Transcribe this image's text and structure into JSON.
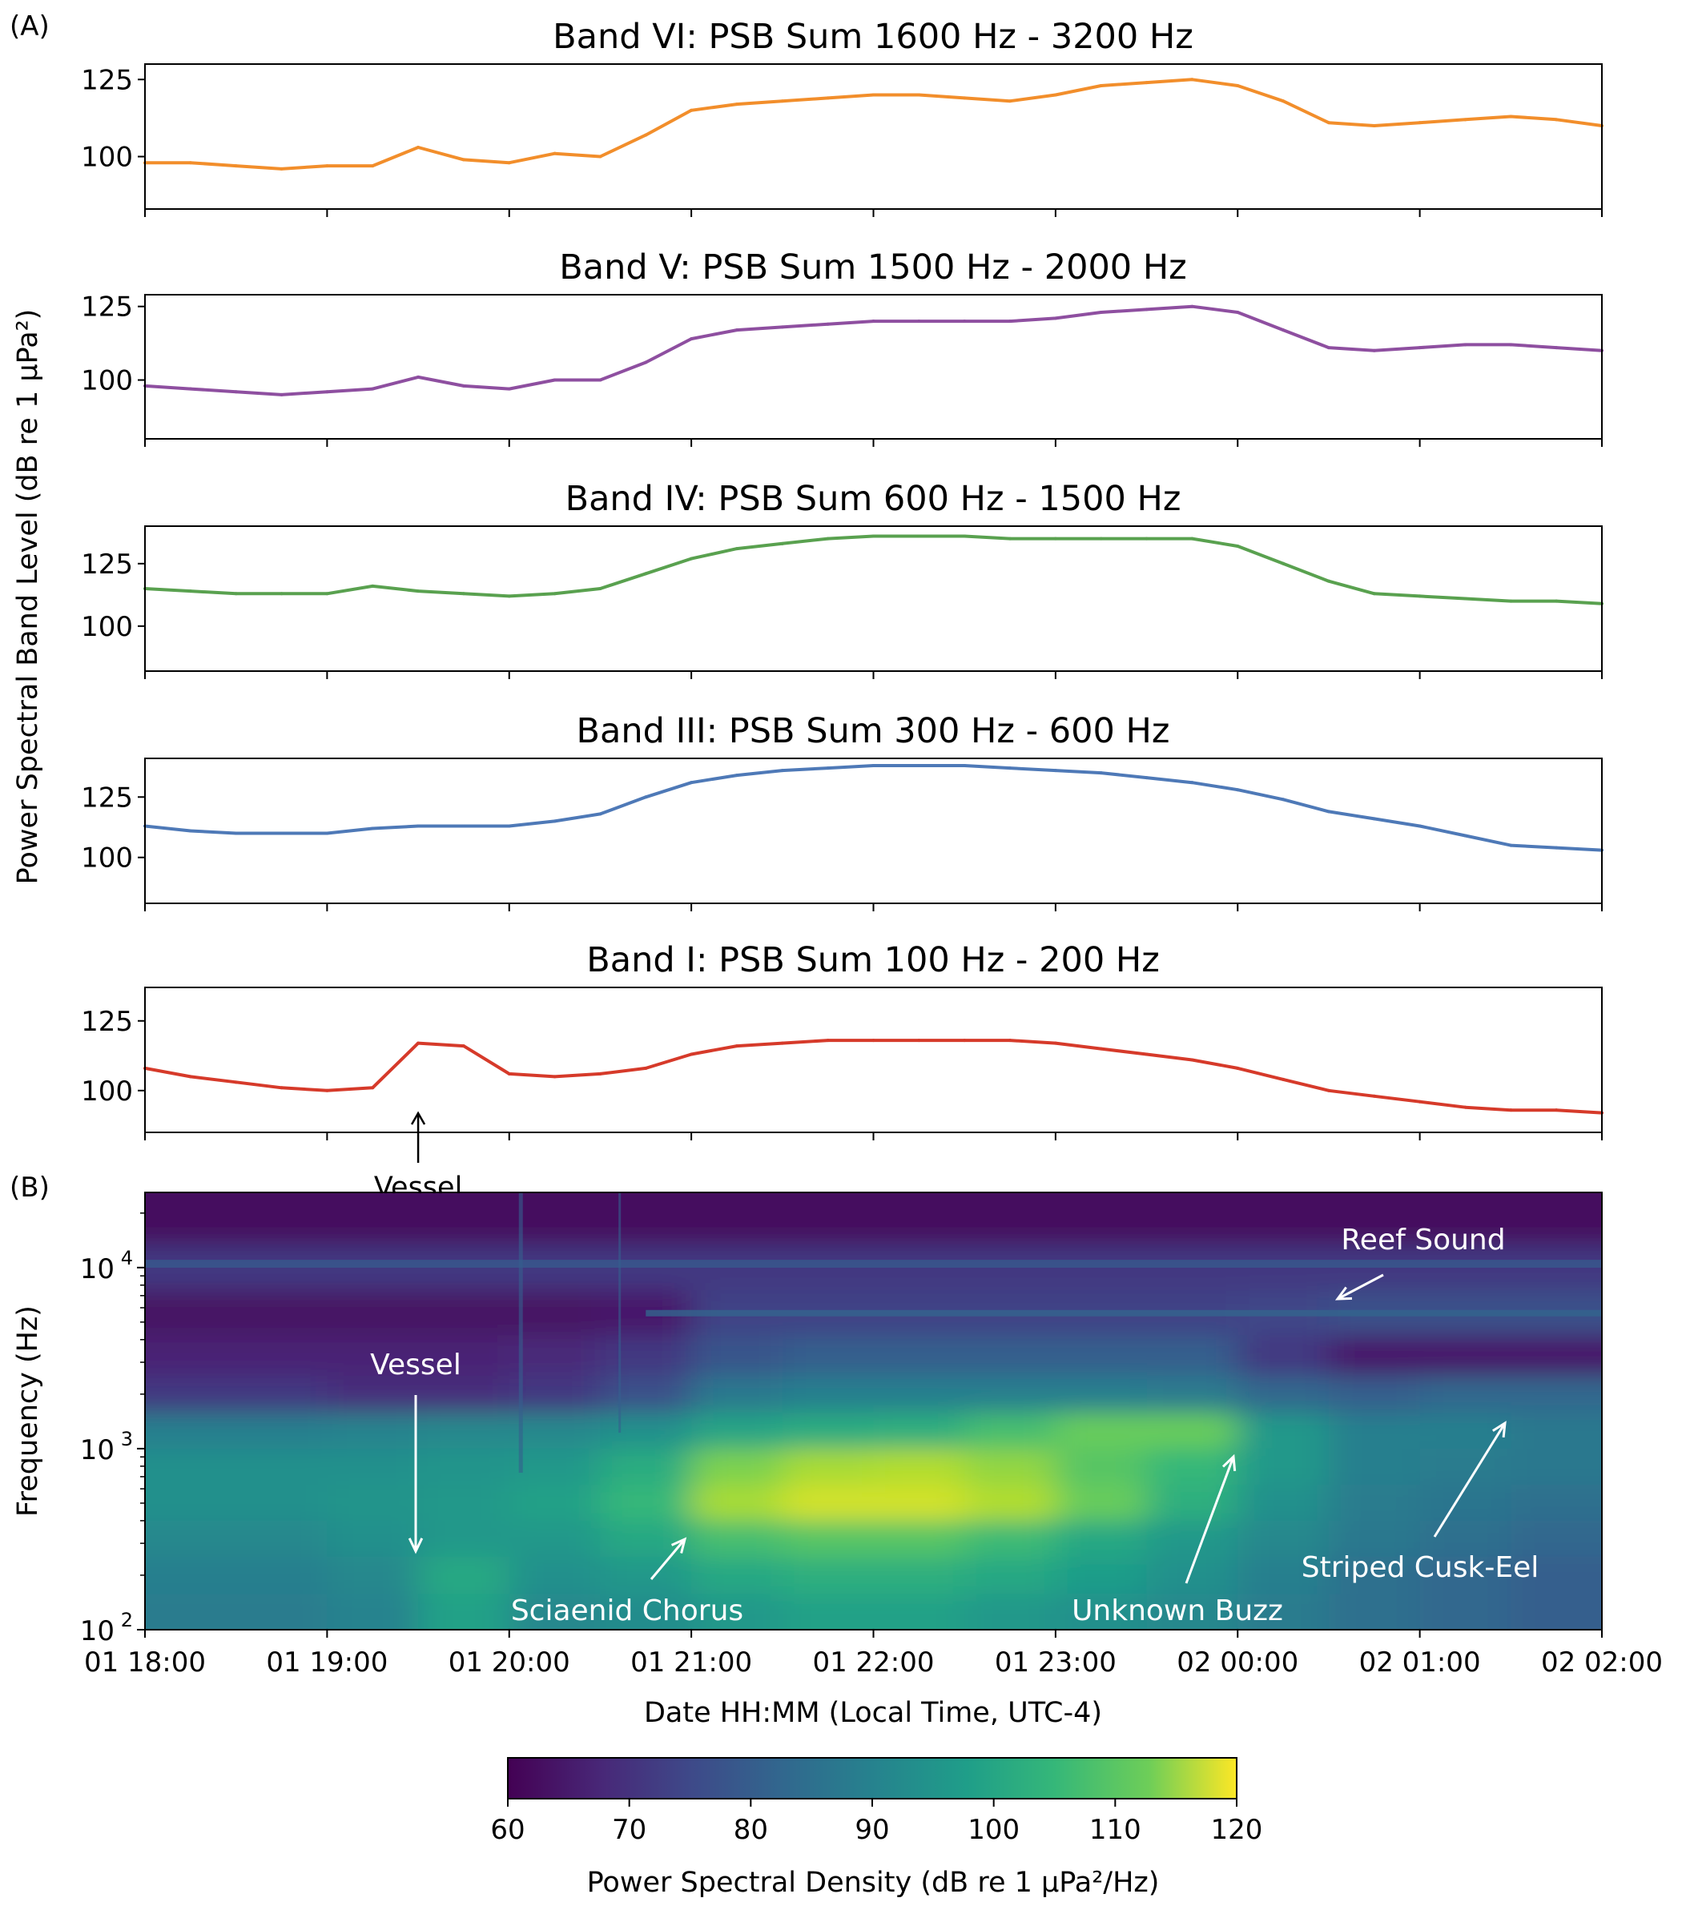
{
  "panel_labels": {
    "a": "(A)",
    "b": "(B)"
  },
  "shared_ylabel": "Power Spectral Band Level (dB re 1 μPa²)",
  "xlabel": "Date HH:MM (Local Time, UTC-4)",
  "chart_data": [
    {
      "type": "line",
      "title": "Band VI: PSB Sum 1600 Hz - 3200 Hz",
      "color": "#f28e2b",
      "ylim": [
        83,
        130
      ],
      "yticks": [
        100,
        125
      ],
      "x": [
        "18:00",
        "18:15",
        "18:30",
        "18:45",
        "19:00",
        "19:15",
        "19:30",
        "19:45",
        "20:00",
        "20:15",
        "20:30",
        "20:45",
        "21:00",
        "21:15",
        "21:30",
        "21:45",
        "22:00",
        "22:15",
        "22:30",
        "22:45",
        "23:00",
        "23:15",
        "23:30",
        "23:45",
        "00:00",
        "00:15",
        "00:30",
        "00:45",
        "01:00",
        "01:15",
        "01:30",
        "01:45",
        "02:00"
      ],
      "values": [
        98,
        98,
        97,
        96,
        97,
        97,
        103,
        99,
        98,
        101,
        100,
        107,
        115,
        117,
        118,
        119,
        120,
        120,
        119,
        118,
        120,
        123,
        124,
        125,
        123,
        118,
        111,
        110,
        111,
        112,
        113,
        112,
        110
      ]
    },
    {
      "type": "line",
      "title": "Band V: PSB Sum 1500 Hz - 2000 Hz",
      "color": "#8e4fa0",
      "ylim": [
        80,
        129
      ],
      "yticks": [
        100,
        125
      ],
      "x": [
        "18:00",
        "18:15",
        "18:30",
        "18:45",
        "19:00",
        "19:15",
        "19:30",
        "19:45",
        "20:00",
        "20:15",
        "20:30",
        "20:45",
        "21:00",
        "21:15",
        "21:30",
        "21:45",
        "22:00",
        "22:15",
        "22:30",
        "22:45",
        "23:00",
        "23:15",
        "23:30",
        "23:45",
        "00:00",
        "00:15",
        "00:30",
        "00:45",
        "01:00",
        "01:15",
        "01:30",
        "01:45",
        "02:00"
      ],
      "values": [
        98,
        97,
        96,
        95,
        96,
        97,
        101,
        98,
        97,
        100,
        100,
        106,
        114,
        117,
        118,
        119,
        120,
        120,
        120,
        120,
        121,
        123,
        124,
        125,
        123,
        117,
        111,
        110,
        111,
        112,
        112,
        111,
        110
      ]
    },
    {
      "type": "line",
      "title": "Band IV: PSB Sum 600 Hz - 1500 Hz",
      "color": "#59a14f",
      "ylim": [
        82,
        140
      ],
      "yticks": [
        100,
        125
      ],
      "x": [
        "18:00",
        "18:15",
        "18:30",
        "18:45",
        "19:00",
        "19:15",
        "19:30",
        "19:45",
        "20:00",
        "20:15",
        "20:30",
        "20:45",
        "21:00",
        "21:15",
        "21:30",
        "21:45",
        "22:00",
        "22:15",
        "22:30",
        "22:45",
        "23:00",
        "23:15",
        "23:30",
        "23:45",
        "00:00",
        "00:15",
        "00:30",
        "00:45",
        "01:00",
        "01:15",
        "01:30",
        "01:45",
        "02:00"
      ],
      "values": [
        115,
        114,
        113,
        113,
        113,
        116,
        114,
        113,
        112,
        113,
        115,
        121,
        127,
        131,
        133,
        135,
        136,
        136,
        136,
        135,
        135,
        135,
        135,
        135,
        132,
        125,
        118,
        113,
        112,
        111,
        110,
        110,
        109
      ]
    },
    {
      "type": "line",
      "title": "Band III: PSB Sum 300 Hz - 600 Hz",
      "color": "#4e79b7",
      "ylim": [
        81,
        141
      ],
      "yticks": [
        100,
        125
      ],
      "x": [
        "18:00",
        "18:15",
        "18:30",
        "18:45",
        "19:00",
        "19:15",
        "19:30",
        "19:45",
        "20:00",
        "20:15",
        "20:30",
        "20:45",
        "21:00",
        "21:15",
        "21:30",
        "21:45",
        "22:00",
        "22:15",
        "22:30",
        "22:45",
        "23:00",
        "23:15",
        "23:30",
        "23:45",
        "00:00",
        "00:15",
        "00:30",
        "00:45",
        "01:00",
        "01:15",
        "01:30",
        "01:45",
        "02:00"
      ],
      "values": [
        113,
        111,
        110,
        110,
        110,
        112,
        113,
        113,
        113,
        115,
        118,
        125,
        131,
        134,
        136,
        137,
        138,
        138,
        138,
        137,
        136,
        135,
        133,
        131,
        128,
        124,
        119,
        116,
        113,
        109,
        105,
        104,
        103
      ]
    },
    {
      "type": "line",
      "title": "Band I: PSB Sum 100 Hz - 200 Hz",
      "color": "#d63a2a",
      "ylim": [
        85,
        137
      ],
      "yticks": [
        100,
        125
      ],
      "x": [
        "18:00",
        "18:15",
        "18:30",
        "18:45",
        "19:00",
        "19:15",
        "19:30",
        "19:45",
        "20:00",
        "20:15",
        "20:30",
        "20:45",
        "21:00",
        "21:15",
        "21:30",
        "21:45",
        "22:00",
        "22:15",
        "22:30",
        "22:45",
        "23:00",
        "23:15",
        "23:30",
        "23:45",
        "00:00",
        "00:15",
        "00:30",
        "00:45",
        "01:00",
        "01:15",
        "01:30",
        "01:45",
        "02:00"
      ],
      "values": [
        108,
        105,
        103,
        101,
        100,
        101,
        117,
        116,
        106,
        105,
        106,
        108,
        113,
        116,
        117,
        118,
        118,
        118,
        118,
        118,
        117,
        115,
        113,
        111,
        108,
        104,
        100,
        98,
        96,
        94,
        93,
        93,
        92
      ],
      "annotations": [
        {
          "text": "Vessel",
          "x": "19:30"
        }
      ]
    },
    {
      "type": "heatmap",
      "ylabel": "Frequency (Hz)",
      "yscale": "log",
      "ylim": [
        100,
        26000
      ],
      "yticks": [
        {
          "value": 100,
          "base": "10",
          "exp": "2"
        },
        {
          "value": 1000,
          "base": "10",
          "exp": "3"
        },
        {
          "value": 10000,
          "base": "10",
          "exp": "4"
        }
      ],
      "xtick_labels": [
        "01 18:00",
        "01 19:00",
        "01 20:00",
        "01 21:00",
        "01 22:00",
        "01 23:00",
        "02 00:00",
        "02 01:00",
        "02 02:00"
      ],
      "colormap": "viridis",
      "time_bins": [
        "18:15",
        "18:45",
        "19:15",
        "19:45",
        "20:15",
        "20:45",
        "21:15",
        "21:45",
        "22:15",
        "22:45",
        "23:15",
        "23:45",
        "00:15",
        "00:45",
        "01:15",
        "01:45"
      ],
      "freq_bins": [
        18000,
        10000,
        5600,
        3200,
        2000,
        1250,
        800,
        500,
        320,
        200,
        125
      ],
      "values": [
        [
          62,
          62,
          62,
          62,
          62,
          62,
          62,
          62,
          62,
          62,
          62,
          62,
          62,
          62,
          62,
          62
        ],
        [
          70,
          70,
          70,
          70,
          70,
          70,
          70,
          70,
          70,
          70,
          70,
          70,
          70,
          70,
          70,
          70
        ],
        [
          63,
          63,
          63,
          63,
          63,
          64,
          72,
          72,
          72,
          72,
          72,
          72,
          73,
          75,
          75,
          75
        ],
        [
          66,
          66,
          66,
          66,
          67,
          70,
          76,
          78,
          78,
          78,
          78,
          78,
          70,
          64,
          64,
          64
        ],
        [
          70,
          70,
          68,
          68,
          70,
          75,
          84,
          86,
          86,
          86,
          86,
          85,
          80,
          78,
          80,
          80
        ],
        [
          86,
          86,
          87,
          88,
          88,
          90,
          95,
          97,
          98,
          102,
          106,
          106,
          92,
          86,
          86,
          84
        ],
        [
          90,
          90,
          90,
          91,
          92,
          97,
          108,
          112,
          113,
          110,
          104,
          100,
          92,
          86,
          85,
          84
        ],
        [
          90,
          90,
          91,
          92,
          94,
          100,
          112,
          116,
          116,
          113,
          106,
          98,
          90,
          85,
          83,
          82
        ],
        [
          88,
          88,
          90,
          92,
          92,
          96,
          102,
          104,
          104,
          101,
          96,
          92,
          88,
          84,
          82,
          80
        ],
        [
          86,
          86,
          88,
          96,
          90,
          92,
          96,
          98,
          98,
          96,
          93,
          90,
          86,
          82,
          80,
          78
        ],
        [
          85,
          85,
          87,
          94,
          88,
          89,
          92,
          94,
          94,
          92,
          90,
          88,
          85,
          82,
          80,
          78
        ]
      ],
      "annotations": [
        {
          "text": "Vessel"
        },
        {
          "text": "Reef Sound"
        },
        {
          "text": "Sciaenid Chorus"
        },
        {
          "text": "Unknown Buzz"
        },
        {
          "text": "Striped Cusk-Eel"
        }
      ],
      "colorbar": {
        "label": "Power Spectral Density (dB re 1 μPa²/Hz)",
        "range": [
          60,
          120
        ],
        "ticks": [
          "60",
          "70",
          "80",
          "90",
          "100",
          "110",
          "120"
        ]
      }
    }
  ]
}
